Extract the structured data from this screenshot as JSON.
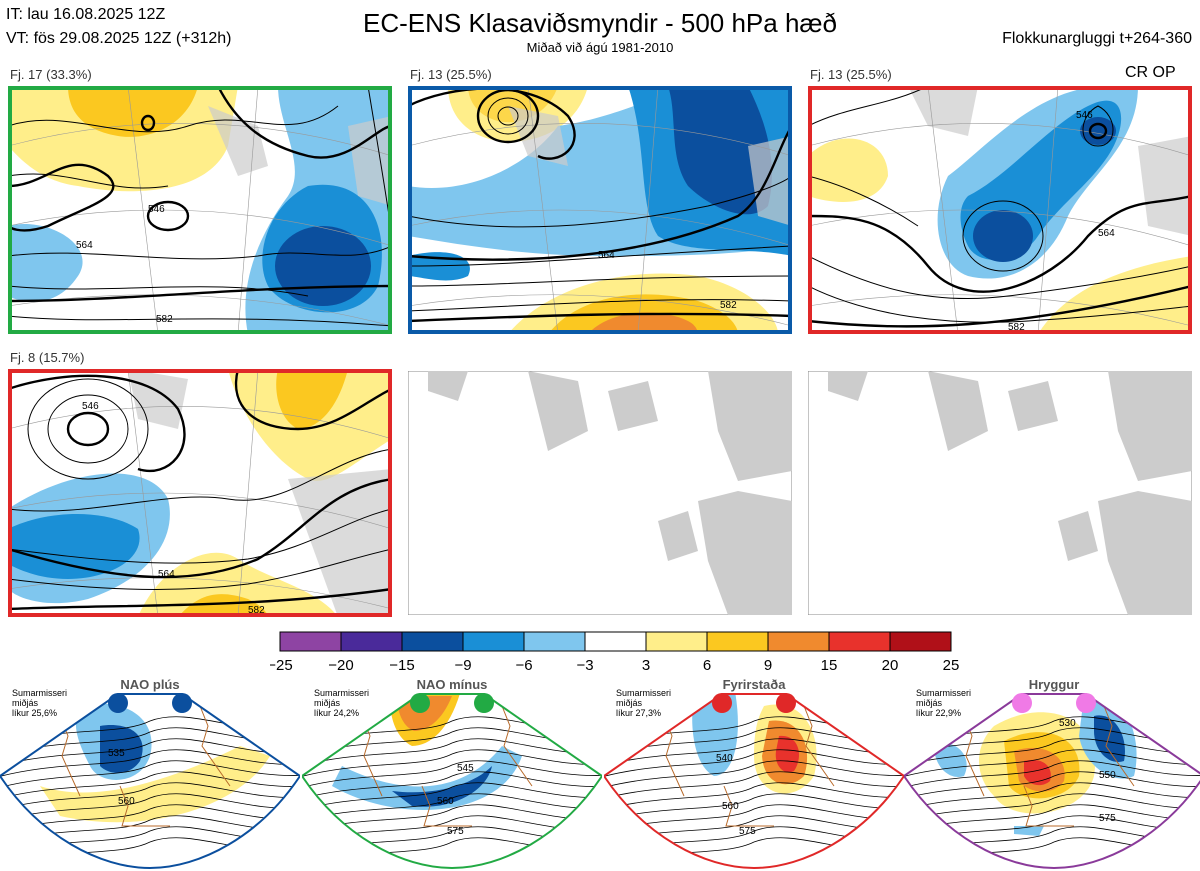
{
  "header": {
    "issue_time": "IT: lau 16.08.2025 12Z",
    "valid_time": "VT: fös 29.08.2025 12Z  (+312h)",
    "title": "EC-ENS Klasaviðsmyndir - 500 hPa hæð",
    "subtitle": "Miðað við ágú 1981-2010",
    "window": "Flokkunargluggi t+264-360",
    "cr_op": "CR OP"
  },
  "colors": {
    "border_green": "#22aa44",
    "border_blue": "#0a5aa8",
    "border_red": "#e02828",
    "border_purple": "#8a3a9a"
  },
  "panels": [
    {
      "label": "Fj. 17 (33.3%)",
      "border": "green",
      "contours": [
        "546",
        "564",
        "582"
      ]
    },
    {
      "label": "Fj. 13 (25.5%)",
      "border": "blue",
      "contours": [
        "564",
        "582"
      ]
    },
    {
      "label": "Fj. 13 (25.5%)",
      "border": "red",
      "contours": [
        "546",
        "564",
        "582"
      ]
    },
    {
      "label": "Fj. 8 (15.7%)",
      "border": "red",
      "contours": [
        "546",
        "564",
        "582"
      ]
    }
  ],
  "colorbar": {
    "ticks": [
      "−25",
      "−20",
      "−15",
      "−9",
      "−6",
      "−3",
      "3",
      "6",
      "9",
      "15",
      "20",
      "25"
    ],
    "colors": [
      "#8e44a3",
      "#4a2a9a",
      "#0b4f9e",
      "#1a8fd6",
      "#7fc6ee",
      "#ffffff",
      "#ffee8a",
      "#fbc820",
      "#f08a2e",
      "#e8322c",
      "#b01018"
    ]
  },
  "regimes": [
    {
      "name": "NAO plús",
      "season": "Sumarmisseri",
      "sub": "miðjás",
      "prob": "líkur 25,6%",
      "labels": [
        "535",
        "560"
      ],
      "dot_color": "#0b4f9e",
      "frame": "#0b4f9e"
    },
    {
      "name": "NAO mínus",
      "season": "Sumarmisseri",
      "sub": "miðjás",
      "prob": "líkur 24,2%",
      "labels": [
        "545",
        "560",
        "575"
      ],
      "dot_color": "#22aa44",
      "frame": "#22aa44"
    },
    {
      "name": "Fyrirstaða",
      "season": "Sumarmisseri",
      "sub": "miðjás",
      "prob": "líkur 27,3%",
      "labels": [
        "540",
        "560",
        "575"
      ],
      "dot_color": "#e02828",
      "frame": "#e02828"
    },
    {
      "name": "Hryggur",
      "season": "Sumarmisseri",
      "sub": "miðjás",
      "prob": "líkur 22,9%",
      "labels": [
        "530",
        "550",
        "575"
      ],
      "dot_color": "#f07ae6",
      "frame": "#8a3a9a"
    }
  ]
}
